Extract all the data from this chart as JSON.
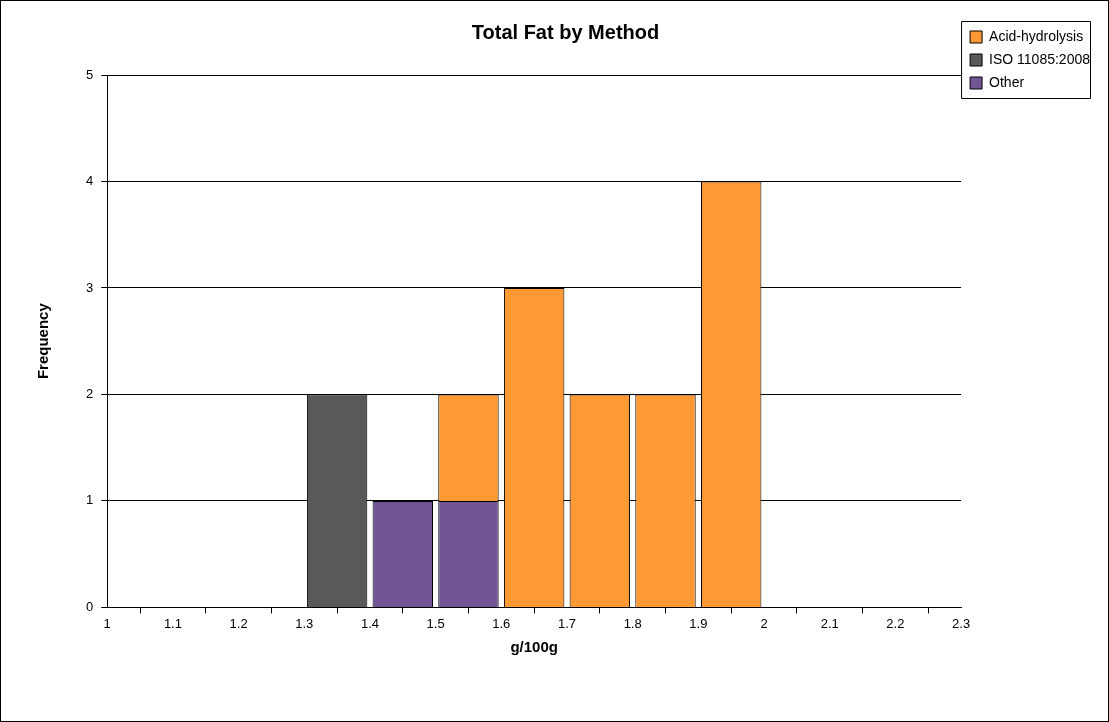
{
  "chart_data": {
    "type": "bar",
    "title": "Total Fat by Method",
    "xlabel": "g/100g",
    "ylabel": "Frequency",
    "x": [
      1.35,
      1.45,
      1.55,
      1.65,
      1.75,
      1.85,
      1.95
    ],
    "series": [
      {
        "name": "Other",
        "color": "#725595",
        "values": [
          0,
          1,
          1,
          0,
          0,
          0,
          0
        ]
      },
      {
        "name": "ISO 11085:2008",
        "color": "#595959",
        "values": [
          2,
          0,
          0,
          0,
          0,
          0,
          0
        ]
      },
      {
        "name": "Acid-hydrolysis",
        "color": "#ff9933",
        "values": [
          0,
          0,
          1,
          3,
          2,
          2,
          4
        ]
      }
    ],
    "stacked": true,
    "xlim": [
      1,
      2.3
    ],
    "xticks": [
      1,
      1.1,
      1.2,
      1.3,
      1.4,
      1.5,
      1.6,
      1.7,
      1.8,
      1.9,
      2,
      2.1,
      2.2,
      2.3
    ],
    "ylim": [
      0,
      5
    ],
    "yticks": [
      0,
      1,
      2,
      3,
      4,
      5
    ],
    "grid": "y",
    "legend": "top right"
  }
}
